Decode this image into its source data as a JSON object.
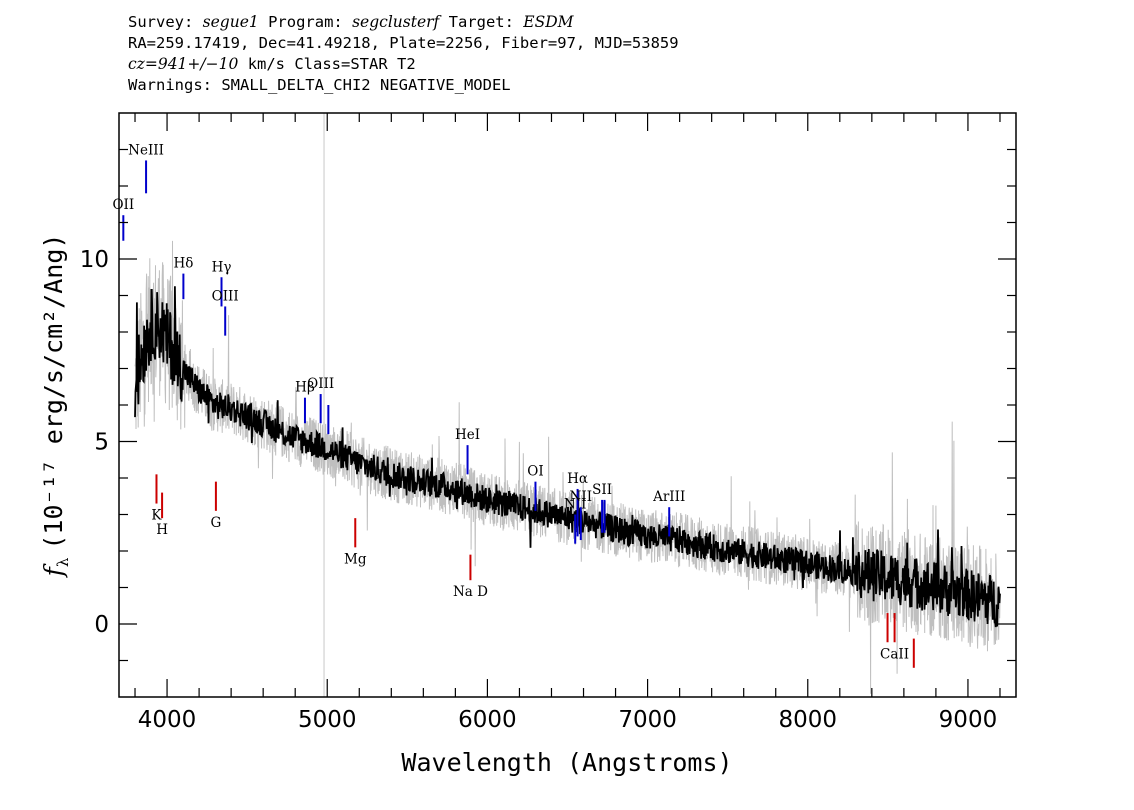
{
  "header": {
    "survey_label": "Survey:",
    "survey": "segue1",
    "program_label": "Program:",
    "program": "segclusterf",
    "target_label": "Target:",
    "target": "ESDM",
    "line2": "RA=259.17419, Dec=41.49218, Plate=2256, Fiber=97, MJD=53859",
    "cz": "cz=941+/−10",
    "cz_units": "km/s Class=STAR T2",
    "warnings": "Warnings: SMALL_DELTA_CHI2 NEGATIVE_MODEL"
  },
  "chart_data": {
    "type": "line",
    "xlabel": "Wavelength (Angstroms)",
    "ylabel_units": "(10⁻¹⁷ erg/s/cm²/Ang)",
    "xlim": [
      3700,
      9300
    ],
    "ylim": [
      -2,
      14
    ],
    "x_ticks": [
      4000,
      5000,
      6000,
      7000,
      8000,
      9000
    ],
    "y_ticks": [
      0,
      5,
      10
    ],
    "grid": false,
    "series": [
      {
        "role": "flux-error-envelope",
        "color": "#bfbfbf",
        "x": [
          3800,
          3850,
          3900,
          3950,
          4000,
          4100,
          4200,
          4300,
          4400,
          4500,
          4600,
          4800,
          5000,
          5200,
          5400,
          5600,
          5800,
          6000,
          6200,
          6400,
          6600,
          6800,
          7000,
          7200,
          7400,
          7600,
          7800,
          8000,
          8200,
          8400,
          8600,
          8800,
          9000,
          9200
        ],
        "values": [
          6.5,
          7.5,
          8.2,
          8.2,
          7.8,
          7.0,
          6.4,
          6.0,
          5.9,
          5.7,
          5.5,
          5.1,
          4.8,
          4.4,
          4.1,
          3.9,
          3.7,
          3.4,
          3.2,
          3.0,
          2.8,
          2.6,
          2.4,
          2.3,
          2.1,
          1.95,
          1.8,
          1.65,
          1.5,
          1.35,
          1.2,
          1.0,
          0.8,
          0.6
        ]
      },
      {
        "role": "flux",
        "color": "#000000",
        "x": [
          3800,
          3850,
          3900,
          3950,
          4000,
          4100,
          4200,
          4300,
          4400,
          4500,
          4600,
          4800,
          5000,
          5200,
          5400,
          5600,
          5800,
          6000,
          6200,
          6400,
          6600,
          6800,
          7000,
          7200,
          7400,
          7600,
          7800,
          8000,
          8200,
          8400,
          8600,
          8800,
          9000,
          9200
        ],
        "values": [
          6.5,
          7.5,
          8.2,
          8.2,
          7.8,
          7.0,
          6.4,
          6.0,
          5.9,
          5.7,
          5.5,
          5.1,
          4.8,
          4.4,
          4.1,
          3.9,
          3.7,
          3.4,
          3.2,
          3.0,
          2.8,
          2.6,
          2.4,
          2.3,
          2.1,
          1.95,
          1.8,
          1.65,
          1.5,
          1.35,
          1.2,
          1.0,
          0.8,
          0.6
        ]
      }
    ],
    "emission_lines": [
      {
        "label": "OII",
        "x": 3727,
        "y0": 10.5,
        "y1": 11.2,
        "color": "#0000cc"
      },
      {
        "label": "NeIII",
        "x": 3869,
        "y0": 11.8,
        "y1": 12.7,
        "color": "#0000cc"
      },
      {
        "label": "Hδ",
        "x": 4102,
        "y0": 8.9,
        "y1": 9.6,
        "color": "#0000cc"
      },
      {
        "label": "Hγ",
        "x": 4340,
        "y0": 8.7,
        "y1": 9.5,
        "color": "#0000cc"
      },
      {
        "label": "OIII",
        "x": 4363,
        "y0": 7.9,
        "y1": 8.7,
        "color": "#0000cc"
      },
      {
        "label": "Hβ",
        "x": 4861,
        "y0": 5.5,
        "y1": 6.2,
        "color": "#0000cc"
      },
      {
        "label": "OIII",
        "x": 4959,
        "y0": 5.5,
        "y1": 6.3,
        "color": "#0000cc"
      },
      {
        "label": "",
        "x": 5007,
        "y0": 5.2,
        "y1": 6.0,
        "color": "#0000cc"
      },
      {
        "label": "HeI",
        "x": 5876,
        "y0": 4.1,
        "y1": 4.9,
        "color": "#0000cc"
      },
      {
        "label": "OI",
        "x": 6300,
        "y0": 3.1,
        "y1": 3.9,
        "color": "#0000cc"
      },
      {
        "label": "NII",
        "x": 6548,
        "y0": 2.2,
        "y1": 3.0,
        "color": "#0000cc"
      },
      {
        "label": "Hα",
        "x": 6563,
        "y0": 2.4,
        "y1": 3.7,
        "color": "#0000cc"
      },
      {
        "label": "NII",
        "x": 6583,
        "y0": 2.3,
        "y1": 3.2,
        "color": "#0000cc"
      },
      {
        "label": "SII",
        "x": 6716,
        "y0": 2.5,
        "y1": 3.4,
        "color": "#0000cc"
      },
      {
        "label": "",
        "x": 6731,
        "y0": 2.5,
        "y1": 3.4,
        "color": "#0000cc"
      },
      {
        "label": "ArIII",
        "x": 7135,
        "y0": 2.4,
        "y1": 3.2,
        "color": "#0000cc"
      }
    ],
    "absorption_lines": [
      {
        "label": "K",
        "x": 3934,
        "y0": 3.3,
        "y1": 4.1,
        "color": "#cc0000"
      },
      {
        "label": "H",
        "x": 3969,
        "y0": 2.9,
        "y1": 3.6,
        "color": "#cc0000"
      },
      {
        "label": "G",
        "x": 4305,
        "y0": 3.1,
        "y1": 3.9,
        "color": "#cc0000"
      },
      {
        "label": "Mg",
        "x": 5175,
        "y0": 2.1,
        "y1": 2.9,
        "color": "#cc0000"
      },
      {
        "label": "Na D",
        "x": 5894,
        "y0": 1.2,
        "y1": 1.9,
        "color": "#cc0000"
      },
      {
        "label": "",
        "x": 8498,
        "y0": -0.5,
        "y1": 0.3,
        "color": "#cc0000"
      },
      {
        "label": "CaII",
        "x": 8542,
        "y0": -0.5,
        "y1": 0.3,
        "color": "#cc0000"
      },
      {
        "label": "",
        "x": 8662,
        "y0": -1.2,
        "y1": -0.4,
        "color": "#cc0000"
      }
    ],
    "reference_line_x": 4980
  }
}
